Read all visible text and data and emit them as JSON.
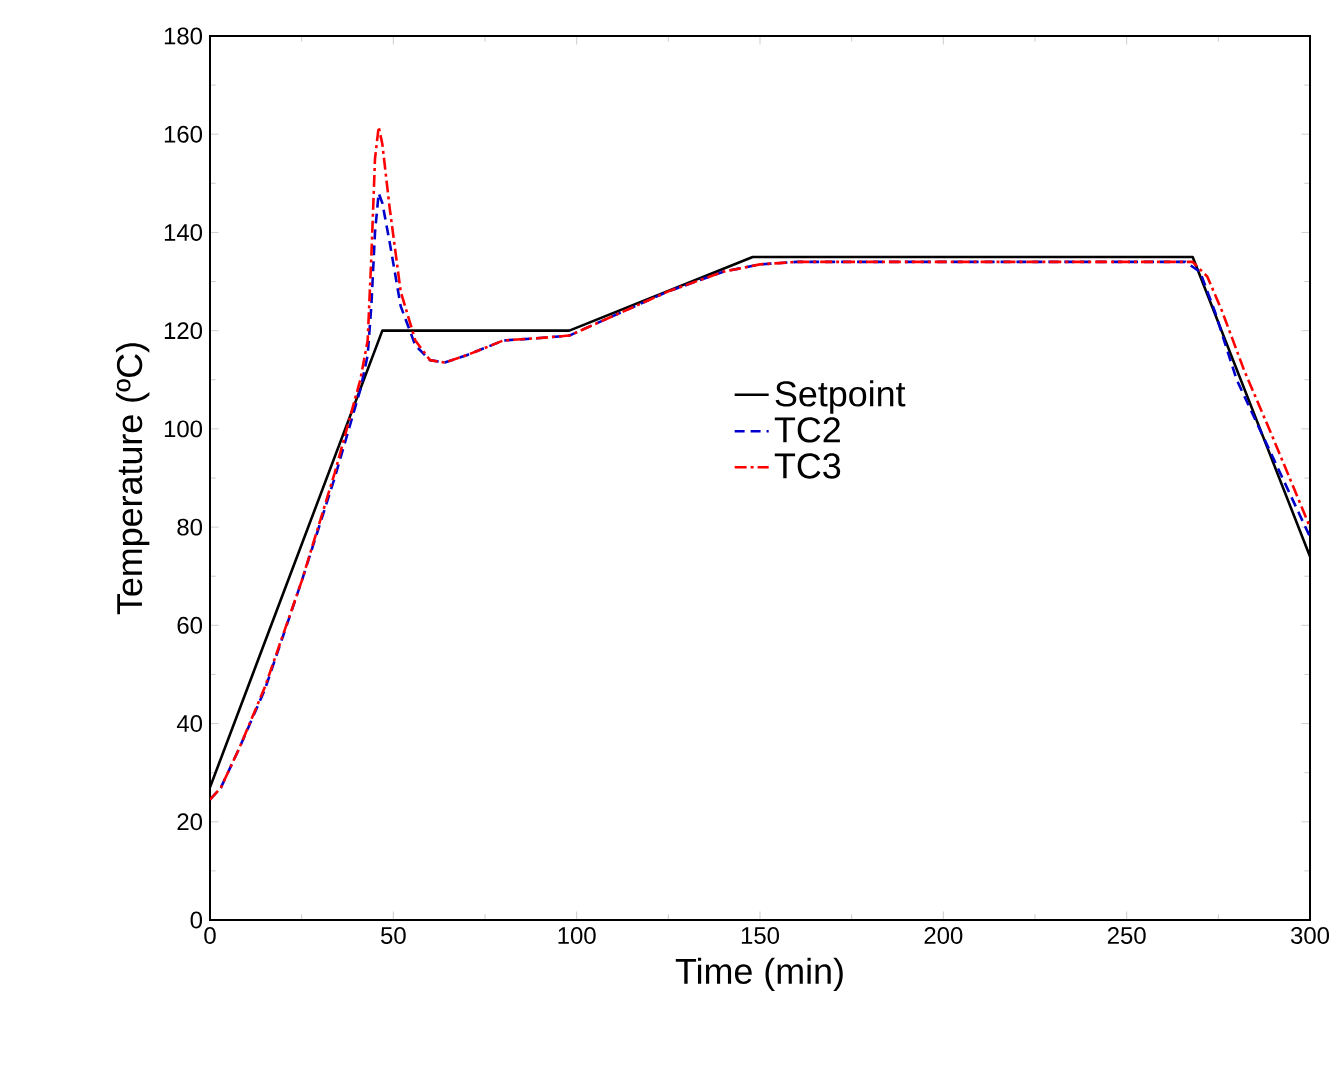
{
  "chart_data": {
    "type": "line",
    "xlabel": "Time (min)",
    "ylabel": "Temperature (ºC)",
    "xlim": [
      0,
      300
    ],
    "ylim": [
      0,
      180
    ],
    "xticks": [
      0,
      50,
      100,
      150,
      200,
      250,
      300
    ],
    "yticks": [
      0,
      20,
      40,
      60,
      80,
      100,
      120,
      140,
      160,
      180
    ],
    "legend": "right",
    "grid": false,
    "series": [
      {
        "name": "Setpoint",
        "color": "#000000",
        "line_style": "solid",
        "x": [
          0,
          47,
          98,
          148,
          268,
          300
        ],
        "values": [
          27,
          120,
          120,
          135,
          135,
          74
        ]
      },
      {
        "name": "TC2",
        "color": "#0000cc",
        "line_style": "dashed",
        "x": [
          0,
          3,
          8,
          15,
          25,
          34,
          41,
          43,
          44,
          45,
          46,
          47,
          49,
          52,
          56,
          60,
          64,
          70,
          80,
          90,
          98,
          110,
          125,
          140,
          150,
          160,
          200,
          240,
          266,
          270,
          274,
          280,
          290,
          300
        ],
        "values": [
          24.5,
          27,
          35,
          47,
          69,
          90,
          108,
          115,
          125,
          140,
          148,
          146,
          138,
          125,
          117,
          114,
          113.5,
          115,
          118,
          118.5,
          119,
          123,
          128,
          132,
          133.5,
          134,
          134,
          134,
          134,
          132,
          124,
          110,
          94,
          78
        ]
      },
      {
        "name": "TC3",
        "color": "#ff0000",
        "line_style": "dashdot",
        "x": [
          0,
          3,
          8,
          15,
          25,
          34,
          41,
          43,
          44,
          45,
          46,
          47,
          49,
          52,
          56,
          60,
          64,
          70,
          80,
          90,
          98,
          110,
          125,
          140,
          150,
          160,
          200,
          240,
          268,
          272,
          276,
          282,
          290,
          300
        ],
        "values": [
          24.5,
          27,
          35,
          47.5,
          69,
          91,
          110,
          118,
          135,
          155,
          161.5,
          158,
          145,
          128,
          118,
          114,
          113.5,
          115,
          118,
          118.5,
          119,
          123,
          128,
          132,
          133.5,
          134,
          134,
          134,
          134,
          131,
          124,
          112,
          98,
          80
        ]
      }
    ]
  }
}
